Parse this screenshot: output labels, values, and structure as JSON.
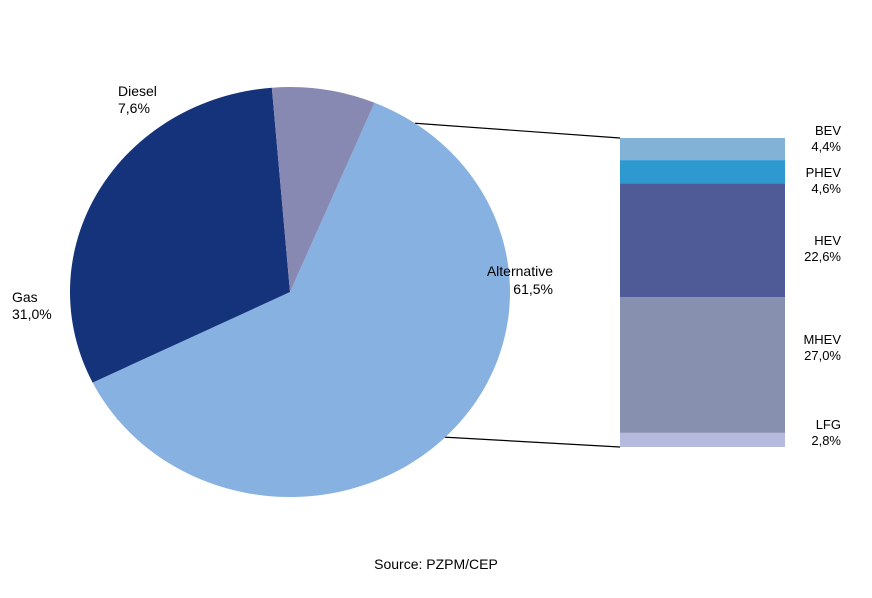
{
  "chart_data": {
    "type": "pie",
    "title": "",
    "source": "Source: PZPM/CEP",
    "slices": [
      {
        "name": "Alternative",
        "pct_label": "61,5%",
        "value": 61.5,
        "color": "#86b1e0"
      },
      {
        "name": "Gas",
        "pct_label": "31,0%",
        "value": 31.0,
        "color": "#14337a"
      },
      {
        "name": "Diesel",
        "pct_label": "7,6%",
        "value": 7.6,
        "color": "#8789b3"
      }
    ],
    "breakdown": {
      "of": "Alternative",
      "type": "stacked-bar",
      "segments": [
        {
          "name": "BEV",
          "pct_label": "4,4%",
          "value": 4.4,
          "color": "#82b3d6"
        },
        {
          "name": "PHEV",
          "pct_label": "4,6%",
          "value": 4.6,
          "color": "#2e98d0"
        },
        {
          "name": "HEV",
          "pct_label": "22,6%",
          "value": 22.6,
          "color": "#4f5b96"
        },
        {
          "name": "MHEV",
          "pct_label": "27,0%",
          "value": 27.0,
          "color": "#8890af"
        },
        {
          "name": "LFG",
          "pct_label": "2,8%",
          "value": 2.8,
          "color": "#b6bade"
        }
      ]
    }
  }
}
